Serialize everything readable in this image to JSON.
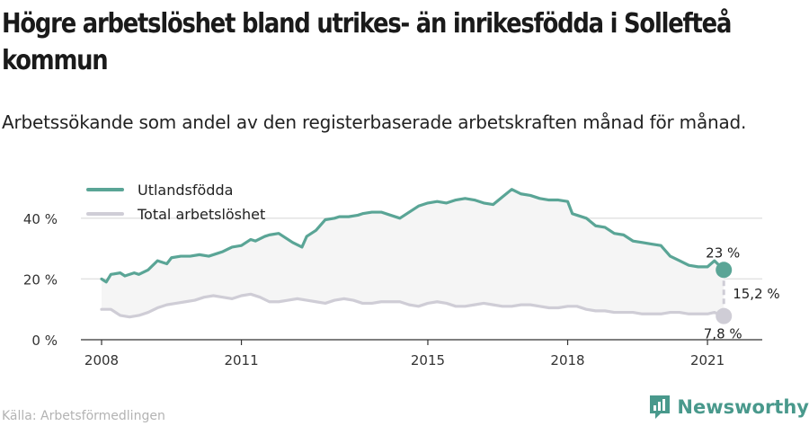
{
  "header": {
    "title": "Högre arbetslöshet bland utrikes- än inrikesfödda i Sollefteå kommun",
    "subtitle": "Arbetssökande som andel av den registerbaserade arbetskraften månad för månad."
  },
  "footer": {
    "source": "Källa: Arbetsförmedlingen",
    "brand": "Newsworthy"
  },
  "colors": {
    "foreign": "#5aa596",
    "total": "#cfcdd6",
    "band": "#f5f5f5",
    "brand": "#49998c"
  },
  "chart_data": {
    "type": "line",
    "title": "",
    "xlabel": "",
    "ylabel": "",
    "x_range": [
      2008.0,
      2021.5
    ],
    "ylim": [
      0,
      55
    ],
    "y_ticks": [
      0,
      20,
      40
    ],
    "y_tick_labels": [
      "0 %",
      "20 %",
      "40 %"
    ],
    "x_ticks": [
      2008,
      2011,
      2015,
      2018,
      2021
    ],
    "x_tick_labels": [
      "2008",
      "2011",
      "2015",
      "2018",
      "2021"
    ],
    "grid": "horizontal",
    "legend": "top-left",
    "series": [
      {
        "name": "Utlandsfödda",
        "x": [
          2008.0,
          2008.1,
          2008.2,
          2008.4,
          2008.5,
          2008.7,
          2008.8,
          2009.0,
          2009.2,
          2009.4,
          2009.5,
          2009.7,
          2009.9,
          2010.1,
          2010.3,
          2010.5,
          2010.6,
          2010.8,
          2011.0,
          2011.2,
          2011.3,
          2011.5,
          2011.6,
          2011.8,
          2012.0,
          2012.1,
          2012.3,
          2012.4,
          2012.6,
          2012.8,
          2013.0,
          2013.1,
          2013.3,
          2013.5,
          2013.6,
          2013.8,
          2014.0,
          2014.2,
          2014.4,
          2014.6,
          2014.8,
          2015.0,
          2015.2,
          2015.4,
          2015.6,
          2015.8,
          2016.0,
          2016.2,
          2016.4,
          2016.6,
          2016.8,
          2017.0,
          2017.2,
          2017.4,
          2017.6,
          2017.8,
          2018.0,
          2018.1,
          2018.2,
          2018.4,
          2018.6,
          2018.8,
          2019.0,
          2019.2,
          2019.4,
          2019.6,
          2019.8,
          2020.0,
          2020.2,
          2020.4,
          2020.6,
          2020.8,
          2021.0,
          2021.15,
          2021.35
        ],
        "values": [
          20.0,
          19.0,
          21.5,
          22.0,
          21.0,
          22.0,
          21.5,
          23.0,
          26.0,
          25.0,
          27.0,
          27.5,
          27.5,
          28.0,
          27.5,
          28.5,
          29.0,
          30.5,
          31.0,
          33.0,
          32.5,
          34.0,
          34.5,
          35.0,
          33.0,
          32.0,
          30.5,
          34.0,
          36.0,
          39.5,
          40.0,
          40.5,
          40.5,
          41.0,
          41.5,
          42.0,
          42.0,
          41.0,
          40.0,
          42.0,
          44.0,
          45.0,
          45.5,
          45.0,
          46.0,
          46.5,
          46.0,
          45.0,
          44.5,
          47.0,
          49.5,
          48.0,
          47.5,
          46.5,
          46.0,
          46.0,
          45.5,
          41.5,
          41.0,
          40.0,
          37.5,
          37.0,
          35.0,
          34.5,
          32.5,
          32.0,
          31.5,
          31.0,
          27.5,
          26.0,
          24.5,
          24.0,
          24.0,
          26.0,
          23.0
        ]
      },
      {
        "name": "Total arbetslöshet",
        "x": [
          2008.0,
          2008.2,
          2008.4,
          2008.6,
          2008.8,
          2009.0,
          2009.2,
          2009.4,
          2009.6,
          2009.8,
          2010.0,
          2010.2,
          2010.4,
          2010.6,
          2010.8,
          2011.0,
          2011.2,
          2011.4,
          2011.6,
          2011.8,
          2012.0,
          2012.2,
          2012.4,
          2012.6,
          2012.8,
          2013.0,
          2013.2,
          2013.4,
          2013.6,
          2013.8,
          2014.0,
          2014.2,
          2014.4,
          2014.6,
          2014.8,
          2015.0,
          2015.2,
          2015.4,
          2015.6,
          2015.8,
          2016.0,
          2016.2,
          2016.4,
          2016.6,
          2016.8,
          2017.0,
          2017.2,
          2017.4,
          2017.6,
          2017.8,
          2018.0,
          2018.2,
          2018.4,
          2018.6,
          2018.8,
          2019.0,
          2019.2,
          2019.4,
          2019.6,
          2019.8,
          2020.0,
          2020.2,
          2020.4,
          2020.6,
          2020.8,
          2021.0,
          2021.15,
          2021.35
        ],
        "values": [
          10.0,
          10.0,
          8.0,
          7.5,
          8.0,
          9.0,
          10.5,
          11.5,
          12.0,
          12.5,
          13.0,
          14.0,
          14.5,
          14.0,
          13.5,
          14.5,
          15.0,
          14.0,
          12.5,
          12.5,
          13.0,
          13.5,
          13.0,
          12.5,
          12.0,
          13.0,
          13.5,
          13.0,
          12.0,
          12.0,
          12.5,
          12.5,
          12.5,
          11.5,
          11.0,
          12.0,
          12.5,
          12.0,
          11.0,
          11.0,
          11.5,
          12.0,
          11.5,
          11.0,
          11.0,
          11.5,
          11.5,
          11.0,
          10.5,
          10.5,
          11.0,
          11.0,
          10.0,
          9.5,
          9.5,
          9.0,
          9.0,
          9.0,
          8.5,
          8.5,
          8.5,
          9.0,
          9.0,
          8.5,
          8.5,
          8.5,
          9.0,
          7.8
        ]
      }
    ],
    "annotations": {
      "foreign_end_label": "23 %",
      "total_end_label": "7,8 %",
      "gap_label": "15,2 %",
      "foreign_end_value": 23.0,
      "total_end_value": 7.8
    }
  }
}
